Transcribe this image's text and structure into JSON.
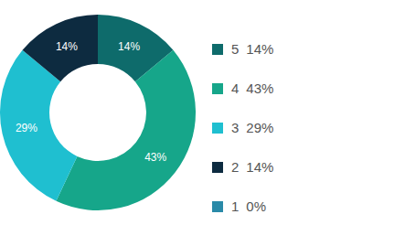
{
  "chart_data": {
    "type": "pie",
    "categories": [
      "5",
      "4",
      "3",
      "2",
      "1"
    ],
    "values": [
      14,
      43,
      29,
      14,
      0
    ],
    "value_labels": [
      "14%",
      "43%",
      "29%",
      "14%",
      "0%"
    ],
    "colors": [
      "#0e6b6b",
      "#16a68a",
      "#1fbfd0",
      "#0d2b40",
      "#2a8aa8"
    ],
    "data_labels": true,
    "legend": "right"
  }
}
